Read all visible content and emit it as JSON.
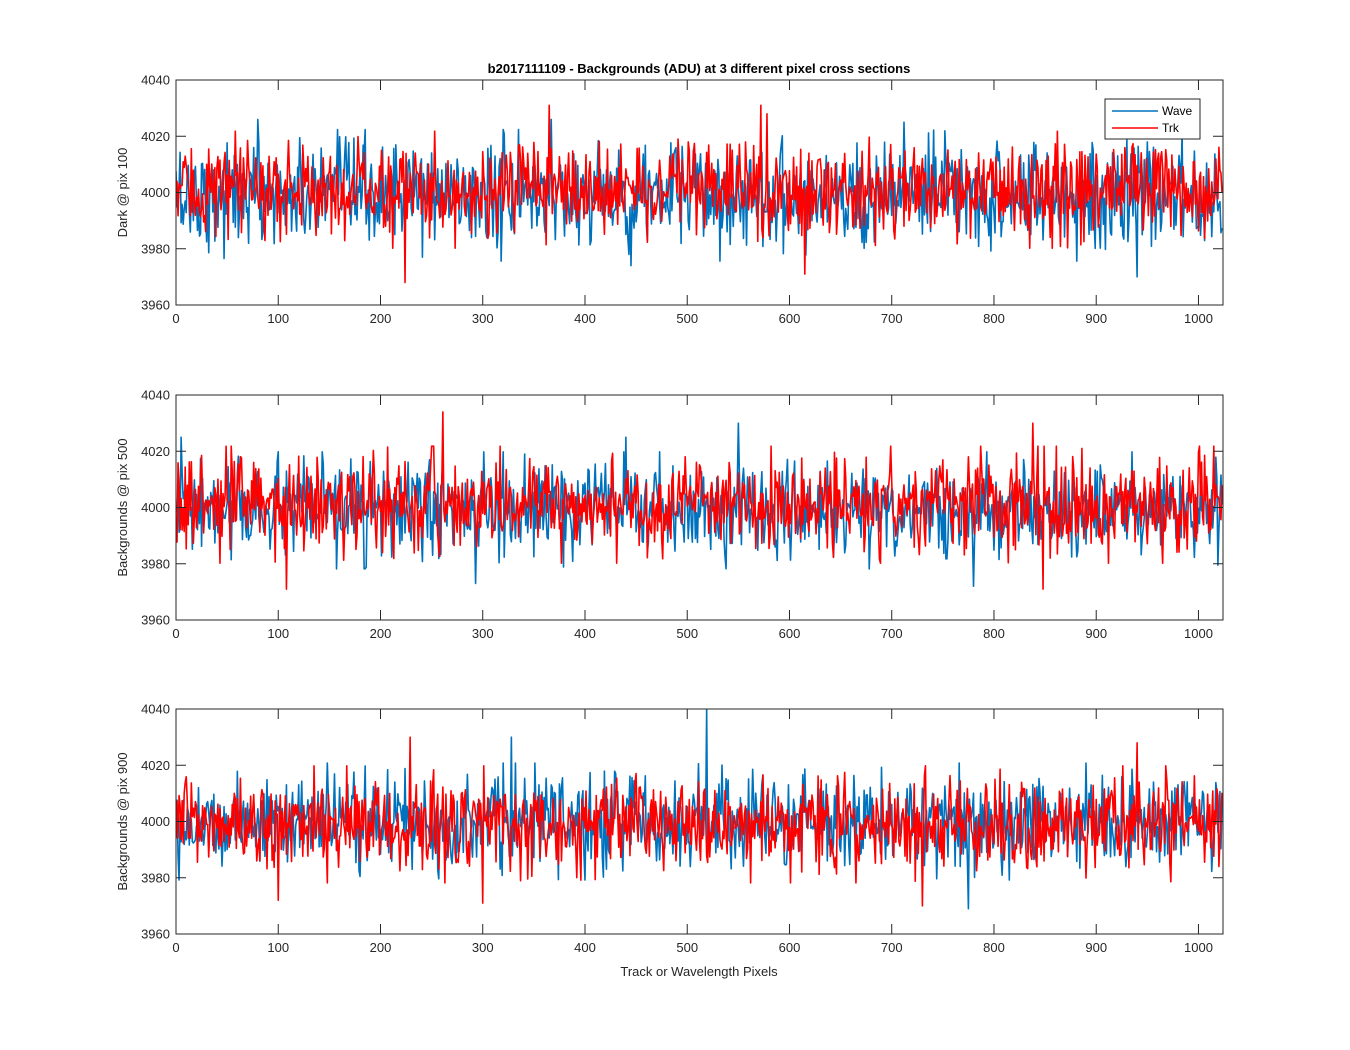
{
  "figure": {
    "title": "b2017111109 - Backgrounds (ADU) at 3 different pixel cross sections",
    "xlabel": "Track or Wavelength Pixels"
  },
  "chart_data": [
    {
      "type": "line",
      "ylabel": "Dark @ pix 100",
      "xlim": [
        0,
        1024
      ],
      "ylim": [
        3960,
        4040
      ],
      "xticks": [
        0,
        100,
        200,
        300,
        400,
        500,
        600,
        700,
        800,
        900,
        1000
      ],
      "yticks": [
        3960,
        3980,
        4000,
        4020,
        4040
      ],
      "series": [
        {
          "name": "Wave",
          "color": "#0072BD",
          "mean": 3999,
          "std": 9,
          "extremes": [
            [
              80,
              4026
            ],
            [
              367,
              4026
            ],
            [
              445,
              3974
            ],
            [
              712,
              4025
            ],
            [
              940,
              3970
            ]
          ]
        },
        {
          "name": "Trk",
          "color": "#FF0000",
          "mean": 4001,
          "std": 8,
          "extremes": [
            [
              224,
              3968
            ],
            [
              365,
              4031
            ],
            [
              572,
              4031
            ],
            [
              578,
              4028
            ],
            [
              615,
              3971
            ]
          ]
        }
      ],
      "legend": {
        "position": "top-right",
        "entries": [
          "Wave",
          "Trk"
        ]
      }
    },
    {
      "type": "line",
      "ylabel": "Backgrounds @ pix 500",
      "xlim": [
        0,
        1024
      ],
      "ylim": [
        3960,
        4040
      ],
      "xticks": [
        0,
        100,
        200,
        300,
        400,
        500,
        600,
        700,
        800,
        900,
        1000
      ],
      "yticks": [
        3960,
        3980,
        4000,
        4020,
        4040
      ],
      "series": [
        {
          "name": "Wave",
          "color": "#0072BD",
          "mean": 3999,
          "std": 8,
          "extremes": [
            [
              5,
              4025
            ],
            [
              293,
              3973
            ],
            [
              440,
              4025
            ],
            [
              550,
              4030
            ],
            [
              780,
              3972
            ]
          ]
        },
        {
          "name": "Trk",
          "color": "#FF0000",
          "mean": 4001,
          "std": 8,
          "extremes": [
            [
              108,
              3971
            ],
            [
              261,
              4034
            ],
            [
              838,
              4030
            ],
            [
              848,
              3971
            ]
          ]
        }
      ]
    },
    {
      "type": "line",
      "ylabel": "Backgrounds @ pix 900",
      "xlim": [
        0,
        1024
      ],
      "ylim": [
        3960,
        4040
      ],
      "xticks": [
        0,
        100,
        200,
        300,
        400,
        500,
        600,
        700,
        800,
        900,
        1000
      ],
      "yticks": [
        3960,
        3980,
        4000,
        4020,
        4040
      ],
      "series": [
        {
          "name": "Wave",
          "color": "#0072BD",
          "mean": 4000,
          "std": 8,
          "extremes": [
            [
              328,
              4030
            ],
            [
              519,
              4040
            ],
            [
              775,
              3969
            ]
          ]
        },
        {
          "name": "Trk",
          "color": "#FF0000",
          "mean": 3999,
          "std": 8,
          "extremes": [
            [
              100,
              3972
            ],
            [
              229,
              4030
            ],
            [
              300,
              3971
            ],
            [
              730,
              3970
            ],
            [
              940,
              4028
            ]
          ]
        }
      ]
    }
  ]
}
